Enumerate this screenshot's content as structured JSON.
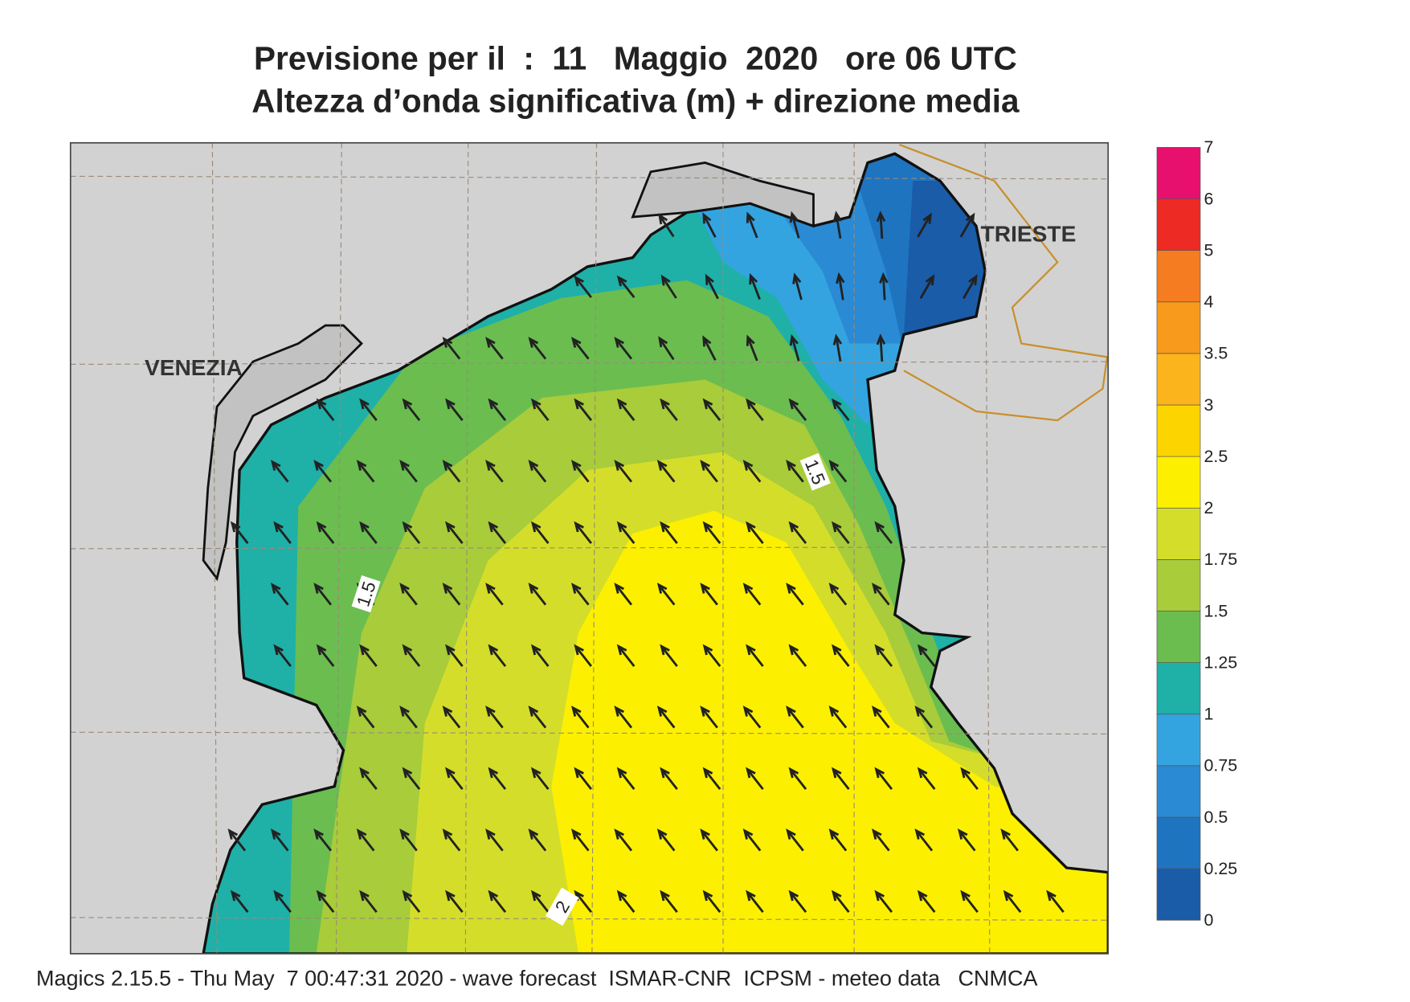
{
  "header": {
    "title_line1": "Previsione per il  :  11   Maggio  2020   ore 06 UTC",
    "title_line2": "Altezza d’onda significativa (m) + direzione media"
  },
  "map": {
    "places": [
      "VENEZIA",
      "TRIESTE"
    ],
    "contour_labels": [
      1.5,
      1.5,
      2
    ]
  },
  "colorbar": {
    "levels": [
      0,
      0.25,
      0.5,
      0.75,
      1,
      1.25,
      1.5,
      1.75,
      2,
      2.5,
      3,
      3.5,
      4,
      5,
      6,
      7
    ],
    "colors": [
      "#1a5ca8",
      "#1f74c0",
      "#2a8ad4",
      "#34a4e0",
      "#1fb0a8",
      "#6bbd50",
      "#a8cc3a",
      "#d4de2a",
      "#fcf000",
      "#fcd400",
      "#fbb41c",
      "#f89a1c",
      "#f57c20",
      "#ee2a24",
      "#e8106e"
    ]
  },
  "footer": "Magics 2.15.5 - Thu May  7 00:47:31 2020 - wave forecast  ISMAR-CNR  ICPSM - meteo data   CNMCA"
}
